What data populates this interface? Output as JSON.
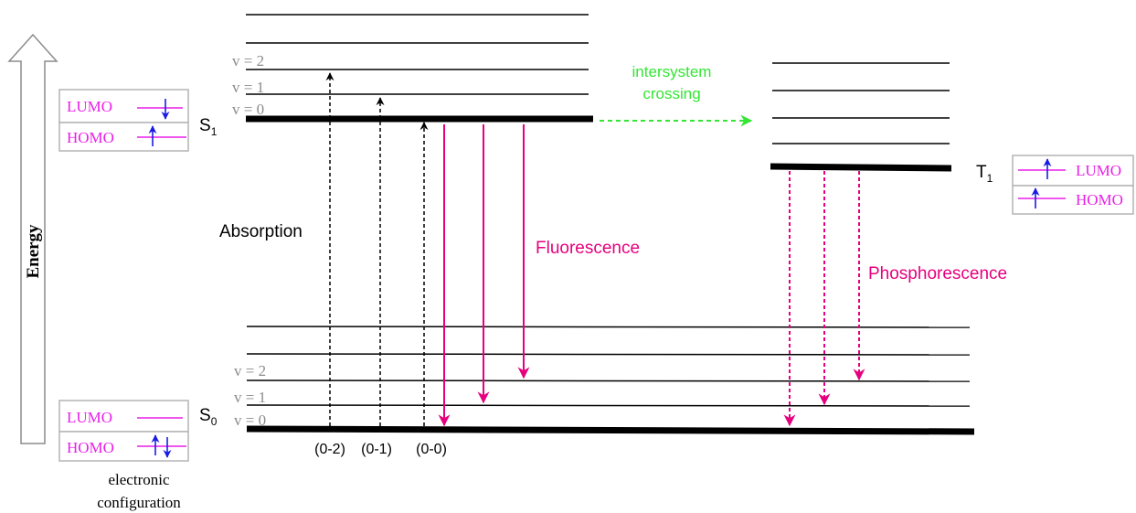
{
  "energy_axis": {
    "label": "Energy"
  },
  "states": {
    "s1": {
      "label": "S",
      "sub": "1",
      "vibrational_labels": [
        "v = 2",
        "v = 1",
        "v = 0"
      ]
    },
    "s0": {
      "label": "S",
      "sub": "0",
      "vibrational_labels": [
        "v = 2",
        "v = 1",
        "v = 0"
      ]
    },
    "t1": {
      "label": "T",
      "sub": "1"
    }
  },
  "config_boxes": {
    "s1": {
      "lumo": "LUMO",
      "homo": "HOMO"
    },
    "s0": {
      "lumo": "LUMO",
      "homo": "HOMO"
    },
    "t1": {
      "lumo": "LUMO",
      "homo": "HOMO"
    }
  },
  "config_caption": [
    "electronic",
    "configuration"
  ],
  "processes": {
    "absorption": "Absorption",
    "absorption_transitions": [
      "(0-2)",
      "(0-1)",
      "(0-0)"
    ],
    "fluorescence": "Fluorescence",
    "isc": [
      "intersystem",
      "crossing"
    ],
    "phosphorescence": "Phosphorescence"
  },
  "colors": {
    "level": "#000000",
    "absorption": "#000000",
    "fluorescence": "#e6007e",
    "phosphorescence": "#e6007e",
    "isc": "#33e633",
    "orbital_line": "#e81ee8",
    "electron": "#1a1ae6",
    "box_border": "#b4b4b4",
    "vib_label": "#8c8c8c"
  }
}
